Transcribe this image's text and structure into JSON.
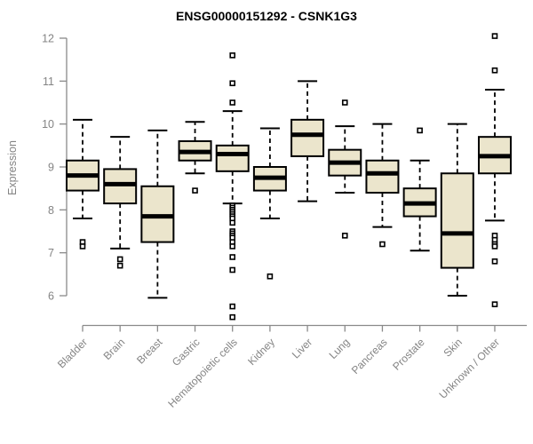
{
  "chart_data": {
    "type": "boxplot",
    "title": "ENSG00000151292 - CSNK1G3",
    "xlabel": "",
    "ylabel": "Expression",
    "ylim": [
      6,
      12
    ],
    "yticks": [
      6,
      7,
      8,
      9,
      10,
      11,
      12
    ],
    "grid": false,
    "legend": false,
    "categories": [
      "Bladder",
      "Brain",
      "Breast",
      "Gastric",
      "Hematopoietic cells",
      "Kidney",
      "Liver",
      "Lung",
      "Pancreas",
      "Prostate",
      "Skin",
      "Unknown / Other"
    ],
    "boxes": [
      {
        "category": "Bladder",
        "whisker_low": 7.8,
        "q1": 8.45,
        "median": 8.8,
        "q3": 9.15,
        "whisker_high": 10.1,
        "outliers": [
          7.25,
          7.15
        ]
      },
      {
        "category": "Brain",
        "whisker_low": 7.1,
        "q1": 8.15,
        "median": 8.6,
        "q3": 8.95,
        "whisker_high": 9.7,
        "outliers": [
          6.85,
          6.7
        ]
      },
      {
        "category": "Breast",
        "whisker_low": 5.95,
        "q1": 7.25,
        "median": 7.85,
        "q3": 8.55,
        "whisker_high": 9.85,
        "outliers": []
      },
      {
        "category": "Gastric",
        "whisker_low": 8.85,
        "q1": 9.15,
        "median": 9.35,
        "q3": 9.6,
        "whisker_high": 10.05,
        "outliers": [
          8.45
        ]
      },
      {
        "category": "Hematopoietic cells",
        "whisker_low": 8.15,
        "q1": 8.9,
        "median": 9.3,
        "q3": 9.5,
        "whisker_high": 10.3,
        "outliers": [
          11.6,
          10.95,
          10.5,
          8.1,
          8.05,
          8.0,
          7.95,
          7.9,
          7.85,
          7.8,
          7.7,
          7.5,
          7.45,
          7.4,
          7.35,
          7.25,
          7.15,
          6.9,
          6.6,
          5.75,
          5.5
        ]
      },
      {
        "category": "Kidney",
        "whisker_low": 7.8,
        "q1": 8.45,
        "median": 8.75,
        "q3": 9.0,
        "whisker_high": 9.9,
        "outliers": [
          6.45
        ]
      },
      {
        "category": "Liver",
        "whisker_low": 8.2,
        "q1": 9.25,
        "median": 9.75,
        "q3": 10.1,
        "whisker_high": 11.0,
        "outliers": []
      },
      {
        "category": "Lung",
        "whisker_low": 8.4,
        "q1": 8.8,
        "median": 9.1,
        "q3": 9.4,
        "whisker_high": 9.95,
        "outliers": [
          10.5,
          7.4
        ]
      },
      {
        "category": "Pancreas",
        "whisker_low": 7.6,
        "q1": 8.4,
        "median": 8.85,
        "q3": 9.15,
        "whisker_high": 10.0,
        "outliers": [
          7.2
        ]
      },
      {
        "category": "Prostate",
        "whisker_low": 7.05,
        "q1": 7.85,
        "median": 8.15,
        "q3": 8.5,
        "whisker_high": 9.15,
        "outliers": [
          9.85
        ]
      },
      {
        "category": "Skin",
        "whisker_low": 6.0,
        "q1": 6.65,
        "median": 7.45,
        "q3": 8.85,
        "whisker_high": 10.0,
        "outliers": []
      },
      {
        "category": "Unknown / Other",
        "whisker_low": 7.75,
        "q1": 8.85,
        "median": 9.25,
        "q3": 9.7,
        "whisker_high": 10.8,
        "outliers": [
          12.05,
          11.25,
          7.4,
          7.3,
          7.2,
          7.15,
          6.8,
          5.8
        ]
      }
    ],
    "colors": {
      "box_fill": "#EBE5CC",
      "box_border": "#000000",
      "median": "#000000",
      "axis": "#8a8a8a",
      "tick_text": "#848484",
      "title_text": "#000000",
      "background": "#ffffff"
    }
  }
}
